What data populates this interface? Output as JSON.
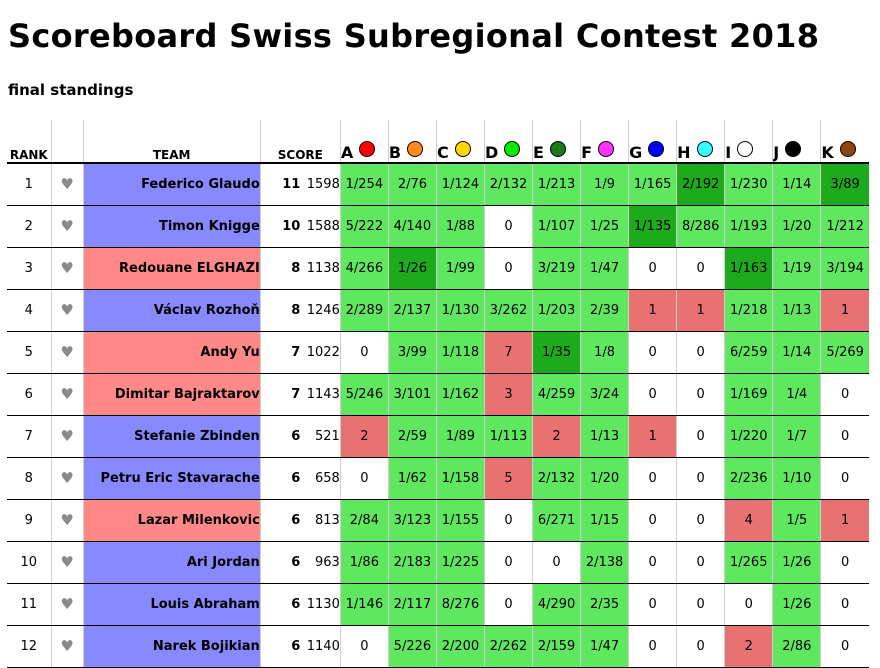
{
  "page": {
    "title": "Scoreboard Swiss Subregional Contest 2018",
    "subtitle": "final standings"
  },
  "headers": {
    "rank": "RANK",
    "team": "TEAM",
    "score": "SCORE"
  },
  "colors": {
    "affiliation_blue": "#8888ff",
    "affiliation_red": "#ff8888",
    "correct": "#60e760",
    "first_to_solve": "#1daa1d",
    "incorrect": "#e87272",
    "favourite_icon": "#8a8a8a"
  },
  "problems": [
    {
      "label": "A",
      "color": "#ff0000",
      "icon": "red-balloon-icon"
    },
    {
      "label": "B",
      "color": "#ff8c1a",
      "icon": "orange-balloon-icon"
    },
    {
      "label": "C",
      "color": "#ffd700",
      "icon": "yellow-balloon-icon"
    },
    {
      "label": "D",
      "color": "#00ee00",
      "icon": "green-balloon-icon"
    },
    {
      "label": "E",
      "color": "#1a7a1a",
      "icon": "dark-green-balloon-icon"
    },
    {
      "label": "F",
      "color": "#ff33ff",
      "icon": "magenta-balloon-icon"
    },
    {
      "label": "G",
      "color": "#0000ff",
      "icon": "blue-balloon-icon"
    },
    {
      "label": "H",
      "color": "#33ffff",
      "icon": "cyan-balloon-icon"
    },
    {
      "label": "I",
      "color": "#ffffff",
      "icon": "white-balloon-icon"
    },
    {
      "label": "J",
      "color": "#000000",
      "icon": "black-balloon-icon"
    },
    {
      "label": "K",
      "color": "#8b4513",
      "icon": "brown-balloon-icon"
    }
  ],
  "teams": [
    {
      "rank": "1",
      "fav_icon": "♥",
      "name": "Federico Glaudo",
      "affiliation": "blue",
      "solved": "11",
      "time": "1598",
      "cells": [
        {
          "text": "1/254",
          "status": "correct"
        },
        {
          "text": "2/76",
          "status": "correct"
        },
        {
          "text": "1/124",
          "status": "correct"
        },
        {
          "text": "2/132",
          "status": "correct"
        },
        {
          "text": "1/213",
          "status": "correct"
        },
        {
          "text": "1/9",
          "status": "correct"
        },
        {
          "text": "1/165",
          "status": "correct"
        },
        {
          "text": "2/192",
          "status": "first"
        },
        {
          "text": "1/230",
          "status": "correct"
        },
        {
          "text": "1/14",
          "status": "correct"
        },
        {
          "text": "3/89",
          "status": "first"
        }
      ]
    },
    {
      "rank": "2",
      "fav_icon": "♥",
      "name": "Timon Knigge",
      "affiliation": "blue",
      "solved": "10",
      "time": "1588",
      "cells": [
        {
          "text": "5/222",
          "status": "correct"
        },
        {
          "text": "4/140",
          "status": "correct"
        },
        {
          "text": "1/88",
          "status": "correct"
        },
        {
          "text": "0",
          "status": "empty"
        },
        {
          "text": "1/107",
          "status": "correct"
        },
        {
          "text": "1/25",
          "status": "correct"
        },
        {
          "text": "1/135",
          "status": "first"
        },
        {
          "text": "8/286",
          "status": "correct"
        },
        {
          "text": "1/193",
          "status": "correct"
        },
        {
          "text": "1/20",
          "status": "correct"
        },
        {
          "text": "1/212",
          "status": "correct"
        }
      ]
    },
    {
      "rank": "3",
      "fav_icon": "♥",
      "name": "Redouane ELGHAZI",
      "affiliation": "red",
      "solved": "8",
      "time": "1138",
      "cells": [
        {
          "text": "4/266",
          "status": "correct"
        },
        {
          "text": "1/26",
          "status": "first"
        },
        {
          "text": "1/99",
          "status": "correct"
        },
        {
          "text": "0",
          "status": "empty"
        },
        {
          "text": "3/219",
          "status": "correct"
        },
        {
          "text": "1/47",
          "status": "correct"
        },
        {
          "text": "0",
          "status": "empty"
        },
        {
          "text": "0",
          "status": "empty"
        },
        {
          "text": "1/163",
          "status": "first"
        },
        {
          "text": "1/19",
          "status": "correct"
        },
        {
          "text": "3/194",
          "status": "correct"
        }
      ]
    },
    {
      "rank": "4",
      "fav_icon": "♥",
      "name": "Václav Rozhoň",
      "affiliation": "blue",
      "solved": "8",
      "time": "1246",
      "cells": [
        {
          "text": "2/289",
          "status": "correct"
        },
        {
          "text": "2/137",
          "status": "correct"
        },
        {
          "text": "1/130",
          "status": "correct"
        },
        {
          "text": "3/262",
          "status": "correct"
        },
        {
          "text": "1/203",
          "status": "correct"
        },
        {
          "text": "2/39",
          "status": "correct"
        },
        {
          "text": "1",
          "status": "wrong"
        },
        {
          "text": "1",
          "status": "wrong"
        },
        {
          "text": "1/218",
          "status": "correct"
        },
        {
          "text": "1/13",
          "status": "correct"
        },
        {
          "text": "1",
          "status": "wrong"
        }
      ]
    },
    {
      "rank": "5",
      "fav_icon": "♥",
      "name": "Andy Yu",
      "affiliation": "red",
      "solved": "7",
      "time": "1022",
      "cells": [
        {
          "text": "0",
          "status": "empty"
        },
        {
          "text": "3/99",
          "status": "correct"
        },
        {
          "text": "1/118",
          "status": "correct"
        },
        {
          "text": "7",
          "status": "wrong"
        },
        {
          "text": "1/35",
          "status": "first"
        },
        {
          "text": "1/8",
          "status": "correct"
        },
        {
          "text": "0",
          "status": "empty"
        },
        {
          "text": "0",
          "status": "empty"
        },
        {
          "text": "6/259",
          "status": "correct"
        },
        {
          "text": "1/14",
          "status": "correct"
        },
        {
          "text": "5/269",
          "status": "correct"
        }
      ]
    },
    {
      "rank": "6",
      "fav_icon": "♥",
      "name": "Dimitar Bajraktarov",
      "affiliation": "red",
      "solved": "7",
      "time": "1143",
      "cells": [
        {
          "text": "5/246",
          "status": "correct"
        },
        {
          "text": "3/101",
          "status": "correct"
        },
        {
          "text": "1/162",
          "status": "correct"
        },
        {
          "text": "3",
          "status": "wrong"
        },
        {
          "text": "4/259",
          "status": "correct"
        },
        {
          "text": "3/24",
          "status": "correct"
        },
        {
          "text": "0",
          "status": "empty"
        },
        {
          "text": "0",
          "status": "empty"
        },
        {
          "text": "1/169",
          "status": "correct"
        },
        {
          "text": "1/4",
          "status": "correct"
        },
        {
          "text": "0",
          "status": "empty"
        }
      ]
    },
    {
      "rank": "7",
      "fav_icon": "♥",
      "name": "Stefanie Zbinden",
      "affiliation": "blue",
      "solved": "6",
      "time": "521",
      "cells": [
        {
          "text": "2",
          "status": "wrong"
        },
        {
          "text": "2/59",
          "status": "correct"
        },
        {
          "text": "1/89",
          "status": "correct"
        },
        {
          "text": "1/113",
          "status": "correct"
        },
        {
          "text": "2",
          "status": "wrong"
        },
        {
          "text": "1/13",
          "status": "correct"
        },
        {
          "text": "1",
          "status": "wrong"
        },
        {
          "text": "0",
          "status": "empty"
        },
        {
          "text": "1/220",
          "status": "correct"
        },
        {
          "text": "1/7",
          "status": "correct"
        },
        {
          "text": "0",
          "status": "empty"
        }
      ]
    },
    {
      "rank": "8",
      "fav_icon": "♥",
      "name": "Petru Eric Stavarache",
      "affiliation": "blue",
      "solved": "6",
      "time": "658",
      "cells": [
        {
          "text": "0",
          "status": "empty"
        },
        {
          "text": "1/62",
          "status": "correct"
        },
        {
          "text": "1/158",
          "status": "correct"
        },
        {
          "text": "5",
          "status": "wrong"
        },
        {
          "text": "2/132",
          "status": "correct"
        },
        {
          "text": "1/20",
          "status": "correct"
        },
        {
          "text": "0",
          "status": "empty"
        },
        {
          "text": "0",
          "status": "empty"
        },
        {
          "text": "2/236",
          "status": "correct"
        },
        {
          "text": "1/10",
          "status": "correct"
        },
        {
          "text": "0",
          "status": "empty"
        }
      ]
    },
    {
      "rank": "9",
      "fav_icon": "♥",
      "name": "Lazar Milenkovic",
      "affiliation": "red",
      "solved": "6",
      "time": "813",
      "cells": [
        {
          "text": "2/84",
          "status": "correct"
        },
        {
          "text": "3/123",
          "status": "correct"
        },
        {
          "text": "1/155",
          "status": "correct"
        },
        {
          "text": "0",
          "status": "empty"
        },
        {
          "text": "6/271",
          "status": "correct"
        },
        {
          "text": "1/15",
          "status": "correct"
        },
        {
          "text": "0",
          "status": "empty"
        },
        {
          "text": "0",
          "status": "empty"
        },
        {
          "text": "4",
          "status": "wrong"
        },
        {
          "text": "1/5",
          "status": "correct"
        },
        {
          "text": "1",
          "status": "wrong"
        }
      ]
    },
    {
      "rank": "10",
      "fav_icon": "♥",
      "name": "Ari Jordan",
      "affiliation": "blue",
      "solved": "6",
      "time": "963",
      "cells": [
        {
          "text": "1/86",
          "status": "correct"
        },
        {
          "text": "2/183",
          "status": "correct"
        },
        {
          "text": "1/225",
          "status": "correct"
        },
        {
          "text": "0",
          "status": "empty"
        },
        {
          "text": "0",
          "status": "empty"
        },
        {
          "text": "2/138",
          "status": "correct"
        },
        {
          "text": "0",
          "status": "empty"
        },
        {
          "text": "0",
          "status": "empty"
        },
        {
          "text": "1/265",
          "status": "correct"
        },
        {
          "text": "1/26",
          "status": "correct"
        },
        {
          "text": "0",
          "status": "empty"
        }
      ]
    },
    {
      "rank": "11",
      "fav_icon": "♥",
      "name": "Louis Abraham",
      "affiliation": "blue",
      "solved": "6",
      "time": "1130",
      "cells": [
        {
          "text": "1/146",
          "status": "correct"
        },
        {
          "text": "2/117",
          "status": "correct"
        },
        {
          "text": "8/276",
          "status": "correct"
        },
        {
          "text": "0",
          "status": "empty"
        },
        {
          "text": "4/290",
          "status": "correct"
        },
        {
          "text": "2/35",
          "status": "correct"
        },
        {
          "text": "0",
          "status": "empty"
        },
        {
          "text": "0",
          "status": "empty"
        },
        {
          "text": "0",
          "status": "empty"
        },
        {
          "text": "1/26",
          "status": "correct"
        },
        {
          "text": "0",
          "status": "empty"
        }
      ]
    },
    {
      "rank": "12",
      "fav_icon": "♥",
      "name": "Narek Bojikian",
      "affiliation": "blue",
      "solved": "6",
      "time": "1140",
      "cells": [
        {
          "text": "0",
          "status": "empty"
        },
        {
          "text": "5/226",
          "status": "correct"
        },
        {
          "text": "2/200",
          "status": "correct"
        },
        {
          "text": "2/262",
          "status": "correct"
        },
        {
          "text": "2/159",
          "status": "correct"
        },
        {
          "text": "1/47",
          "status": "correct"
        },
        {
          "text": "0",
          "status": "empty"
        },
        {
          "text": "0",
          "status": "empty"
        },
        {
          "text": "2",
          "status": "wrong"
        },
        {
          "text": "2/86",
          "status": "correct"
        },
        {
          "text": "0",
          "status": "empty"
        }
      ]
    }
  ]
}
